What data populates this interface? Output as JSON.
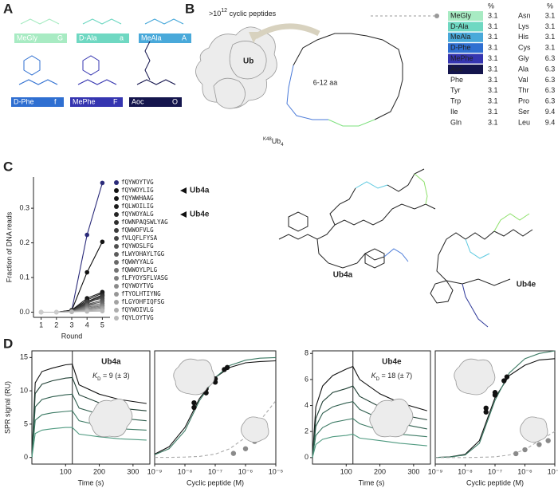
{
  "figure": {
    "A": {
      "label": "A",
      "residues": [
        {
          "name": "MeGly",
          "code": "G",
          "color": "#a8ebc3"
        },
        {
          "name": "D-Ala",
          "code": "a",
          "color": "#6fd8c2"
        },
        {
          "name": "MeAla",
          "code": "A",
          "color": "#49a9da"
        },
        {
          "name": "D-Phe",
          "code": "f",
          "color": "#2f6fd1"
        },
        {
          "name": "MePhe",
          "code": "F",
          "color": "#3535b0"
        },
        {
          "name": "Aoc",
          "code": "O",
          "color": "#14154d"
        }
      ]
    },
    "B": {
      "label": "B",
      "headline_prefix": ">10",
      "headline_exponent": "12",
      "headline_suffix": " cyclic peptides",
      "protein": "Ub",
      "complex_sup": "K48",
      "complex_name": "Ub",
      "complex_sub": "4",
      "ring_size": "6-12 aa",
      "table": {
        "header": [
          "%",
          "%"
        ],
        "rows": [
          [
            "MeGly",
            "3.1",
            "Asn",
            "3.1"
          ],
          [
            "D-Ala",
            "3.1",
            "Lys",
            "3.1"
          ],
          [
            "MeAla",
            "3.1",
            "His",
            "3.1"
          ],
          [
            "D-Phe",
            "3.1",
            "Cys",
            "3.1"
          ],
          [
            "MePhe",
            "3.1",
            "Gly",
            "6.3"
          ],
          [
            "Aoc",
            "3.1",
            "Ala",
            "6.3"
          ],
          [
            "Phe",
            "3.1",
            "Val",
            "6.3"
          ],
          [
            "Tyr",
            "3.1",
            "Thr",
            "6.3"
          ],
          [
            "Trp",
            "3.1",
            "Pro",
            "6.3"
          ],
          [
            "Ile",
            "3.1",
            "Ser",
            "9.4"
          ],
          [
            "Gln",
            "3.1",
            "Leu",
            "9.4"
          ]
        ]
      }
    },
    "C": {
      "label": "C",
      "callouts": [
        "Ub4a",
        "Ub4e"
      ],
      "structures": [
        "Ub4a",
        "Ub4e"
      ],
      "sequences": [
        "fQYWOYTVG",
        "fQYWOYLIG",
        "fQYWWHAAG",
        "fQLWOILIG",
        "fQYWOYALG",
        "fOWNPAQSWLYAG",
        "fQWWOFVLG",
        "fVLQFLFYSA",
        "fQYWOSLFG",
        "fLWYOHAYLTGG",
        "fQWWYYALG",
        "fQWWOYLPLG",
        "fLFYOYSFLVASG",
        "fQYWOYTVG",
        "fTYOLHTIYNG",
        "fLGYOHFIQFSG",
        "fQYWOIVLG",
        "fQYLOYTVG"
      ]
    },
    "D": {
      "label": "D"
    }
  },
  "chart_data": [
    {
      "type": "line",
      "ylabel": "Fraction of DNA reads",
      "xlabel": "Round",
      "markers": true,
      "x": [
        1,
        2,
        3,
        4,
        5
      ],
      "xlim": [
        0.5,
        5.5
      ],
      "xticks": [
        1,
        2,
        3,
        4,
        5
      ],
      "ylim": [
        -0.015,
        0.39
      ],
      "yticks": [
        {
          "value": 0,
          "label": "0.0"
        },
        0.1,
        0.2,
        0.3
      ],
      "series": [
        {
          "color": "#2b2b7a",
          "values": [
            0,
            0,
            0.005,
            0.223,
            0.373
          ]
        },
        {
          "color": "#111111",
          "values": [
            0,
            0,
            0.005,
            0.115,
            0.203
          ]
        },
        {
          "color": "#151515",
          "values": [
            0,
            0,
            0.006,
            0.04,
            0.058
          ]
        },
        {
          "color": "#1c1c1c",
          "values": [
            0,
            0,
            0.004,
            0.035,
            0.055
          ]
        },
        {
          "color": "#252525",
          "values": [
            0,
            0,
            0.005,
            0.03,
            0.05
          ]
        },
        {
          "color": "#2e2e2e",
          "values": [
            0,
            0,
            0.004,
            0.028,
            0.048
          ]
        },
        {
          "color": "#3a3a3a",
          "values": [
            0,
            0,
            0.003,
            0.025,
            0.045
          ]
        },
        {
          "color": "#444444",
          "values": [
            0,
            0,
            0.003,
            0.03,
            0.04
          ]
        },
        {
          "color": "#505050",
          "values": [
            0,
            0,
            0.003,
            0.022,
            0.035
          ]
        },
        {
          "color": "#5c5c5c",
          "values": [
            0,
            0,
            0.002,
            0.02,
            0.03
          ]
        },
        {
          "color": "#686868",
          "values": [
            0,
            0,
            0.002,
            0.018,
            0.025
          ]
        },
        {
          "color": "#737373",
          "values": [
            0,
            0,
            0.002,
            0.015,
            0.02
          ]
        },
        {
          "color": "#7f7f7f",
          "values": [
            0,
            0,
            0.002,
            0.012,
            0.018
          ]
        },
        {
          "color": "#8a8a8a",
          "values": [
            0,
            0,
            0.002,
            0.01,
            0.015
          ]
        },
        {
          "color": "#969696",
          "values": [
            0,
            0,
            0.001,
            0.008,
            0.012
          ]
        },
        {
          "color": "#a2a2a2",
          "values": [
            0,
            0,
            0.001,
            0.006,
            0.01
          ]
        },
        {
          "color": "#adadad",
          "values": [
            0,
            0,
            0.001,
            0.004,
            0.006
          ]
        },
        {
          "color": "#b9b9b9",
          "values": [
            0,
            0,
            0.001,
            0.002,
            0.003
          ]
        }
      ]
    },
    {
      "type": "line",
      "title": "Ub4a",
      "kd": {
        "symbol": "K",
        "subscript": "D",
        "text": " = 9 (± 3)"
      },
      "ylabel": "SPR signal (RU)",
      "xlabel": "Time (s)",
      "frame": true,
      "markers": false,
      "x": [
        0,
        10,
        30,
        60,
        100,
        120,
        140,
        200,
        260,
        340
      ],
      "xlim": [
        0,
        350
      ],
      "xticks": [
        100,
        200,
        300
      ],
      "ylim": [
        -1,
        16
      ],
      "yticks": [
        0,
        5,
        10,
        15
      ],
      "series": [
        {
          "color": "#111111",
          "values": [
            0,
            11.2,
            12.9,
            13.4,
            13.9,
            14,
            10.9,
            9.5,
            8.7,
            8.1
          ]
        },
        {
          "color": "#1f3f34",
          "values": [
            0,
            9.6,
            11,
            11.5,
            11.9,
            12,
            9.4,
            8.2,
            7.4,
            7
          ]
        },
        {
          "color": "#2f5e4e",
          "values": [
            0,
            7.6,
            8.7,
            9.1,
            9.4,
            9.5,
            7.4,
            6.5,
            5.9,
            5.5
          ]
        },
        {
          "color": "#3c7a64",
          "values": [
            0,
            5.6,
            6.4,
            6.7,
            6.9,
            7,
            5.5,
            4.8,
            4.3,
            4.1
          ]
        },
        {
          "color": "#4f9a80",
          "values": [
            0,
            3.6,
            4.1,
            4.3,
            4.5,
            4.5,
            3.5,
            3.1,
            2.8,
            2.6
          ]
        }
      ]
    },
    {
      "type": "scatter",
      "xlabel": "Cyclic peptide (M)",
      "xscale": "log",
      "frame": true,
      "xlim": [
        1e-09,
        1e-05
      ],
      "xticks": [
        {
          "value": 1e-09,
          "label": "10⁻⁹"
        },
        {
          "value": 1e-08,
          "label": "10⁻⁸"
        },
        {
          "value": 1e-07,
          "label": "10⁻⁷"
        },
        {
          "value": 1e-06,
          "label": "10⁻⁶"
        },
        {
          "value": 1e-05,
          "label": "10⁻⁵"
        }
      ],
      "ylim": [
        -1,
        16
      ],
      "series": [
        {
          "kind": "line",
          "color": "#111111",
          "x": [
            1e-09,
            3e-09,
            1e-08,
            3e-08,
            1e-07,
            3e-07,
            1e-06,
            3e-06,
            1e-05
          ],
          "values": [
            0.5,
            1.6,
            4.5,
            8.8,
            12,
            13.5,
            14.2,
            14.4,
            14.5
          ]
        },
        {
          "kind": "line",
          "color": "#3c7a64",
          "x": [
            1e-09,
            3e-09,
            1e-08,
            3e-08,
            1e-07,
            3e-07,
            1e-06,
            3e-06,
            1e-05
          ],
          "values": [
            0.4,
            1.3,
            4,
            8.5,
            12,
            13.8,
            14.6,
            14.9,
            15
          ]
        },
        {
          "kind": "dashed",
          "color": "#aaaaaa",
          "x": [
            1e-09,
            3e-09,
            1e-08,
            3e-08,
            1e-07,
            3e-07,
            1e-06,
            3e-06,
            1e-05
          ],
          "values": [
            0,
            0,
            0.05,
            0.15,
            0.5,
            1.3,
            3,
            5.5,
            8.5
          ]
        },
        {
          "kind": "points",
          "color": "#111111",
          "x": [
            2e-08,
            2e-08,
            5e-08,
            5e-08,
            1e-07,
            1e-07,
            2e-07,
            2.5e-07
          ],
          "values": [
            7.5,
            8.2,
            9.7,
            10.3,
            11.3,
            11.8,
            13.2,
            13.5
          ]
        },
        {
          "kind": "points",
          "color": "#8a8a8a",
          "x": [
            4e-07,
            1e-06,
            2e-06,
            3.5e-06
          ],
          "values": [
            0.6,
            1.3,
            2.4,
            3.2
          ]
        }
      ]
    },
    {
      "type": "line",
      "title": "Ub4e",
      "kd": {
        "symbol": "K",
        "subscript": "D",
        "text": " = 18 (± 7)"
      },
      "xlabel": "Time (s)",
      "frame": true,
      "markers": false,
      "x": [
        0,
        10,
        30,
        60,
        100,
        120,
        140,
        200,
        260,
        340
      ],
      "xlim": [
        0,
        350
      ],
      "xticks": [
        100,
        200,
        300
      ],
      "ylim": [
        -0.5,
        8.2
      ],
      "yticks": [
        0,
        2,
        4,
        6,
        8
      ],
      "series": [
        {
          "color": "#111111",
          "values": [
            0,
            3.9,
            5.5,
            6.3,
            6.8,
            7,
            6,
            4.9,
            4.2,
            3.6
          ]
        },
        {
          "color": "#1f3f34",
          "values": [
            0,
            3,
            4.3,
            5,
            5.3,
            5.5,
            4.7,
            3.9,
            3.3,
            2.9
          ]
        },
        {
          "color": "#2f5e4e",
          "values": [
            0,
            2.4,
            3.4,
            3.9,
            4.2,
            4.3,
            3.7,
            3,
            2.6,
            2.2
          ]
        },
        {
          "color": "#3c7a64",
          "values": [
            0,
            1.7,
            2.3,
            2.7,
            2.9,
            3,
            2.6,
            2.1,
            1.8,
            1.6
          ]
        },
        {
          "color": "#4f9a80",
          "values": [
            0,
            1,
            1.4,
            1.6,
            1.7,
            1.8,
            1.5,
            1.3,
            1.1,
            0.9
          ]
        }
      ]
    },
    {
      "type": "scatter",
      "xlabel": "Cyclic peptide (M)",
      "xscale": "log",
      "frame": true,
      "xlim": [
        1e-09,
        1e-05
      ],
      "xticks": [
        {
          "value": 1e-09,
          "label": "10⁻⁹"
        },
        {
          "value": 1e-08,
          "label": "10⁻⁸"
        },
        {
          "value": 1e-07,
          "label": "10⁻⁷"
        },
        {
          "value": 1e-06,
          "label": "10⁻⁶"
        },
        {
          "value": 1e-05,
          "label": "10⁻⁵"
        }
      ],
      "ylim": [
        -0.5,
        8.2
      ],
      "series": [
        {
          "kind": "line",
          "color": "#111111",
          "x": [
            1e-09,
            3e-09,
            1e-08,
            3e-08,
            1e-07,
            3e-07,
            1e-06,
            3e-06,
            1e-05
          ],
          "values": [
            0.01,
            0.05,
            0.25,
            1.3,
            4.6,
            6.3,
            7.1,
            7.5,
            7.6
          ]
        },
        {
          "kind": "line",
          "color": "#3c7a64",
          "x": [
            1e-09,
            3e-09,
            1e-08,
            3e-08,
            1e-07,
            3e-07,
            1e-06,
            3e-06,
            1e-05
          ],
          "values": [
            0.01,
            0.04,
            0.2,
            1.1,
            4.4,
            6.5,
            7.6,
            8,
            8.2
          ]
        },
        {
          "kind": "dashed",
          "color": "#aaaaaa",
          "x": [
            1e-09,
            3e-09,
            1e-08,
            3e-08,
            1e-07,
            3e-07,
            1e-06,
            3e-06,
            1e-05
          ],
          "values": [
            0,
            0,
            0,
            0.02,
            0.06,
            0.2,
            0.6,
            1.3,
            2
          ]
        },
        {
          "kind": "points",
          "color": "#111111",
          "x": [
            5e-08,
            5e-08,
            1e-07,
            1e-07,
            2e-07,
            2.5e-07
          ],
          "values": [
            3.5,
            3.8,
            4.8,
            5,
            5.9,
            6.2
          ]
        },
        {
          "kind": "points",
          "color": "#8a8a8a",
          "x": [
            5e-07,
            1e-06,
            3e-06,
            6e-06
          ],
          "values": [
            0.3,
            0.6,
            1,
            1.3
          ]
        }
      ]
    }
  ]
}
